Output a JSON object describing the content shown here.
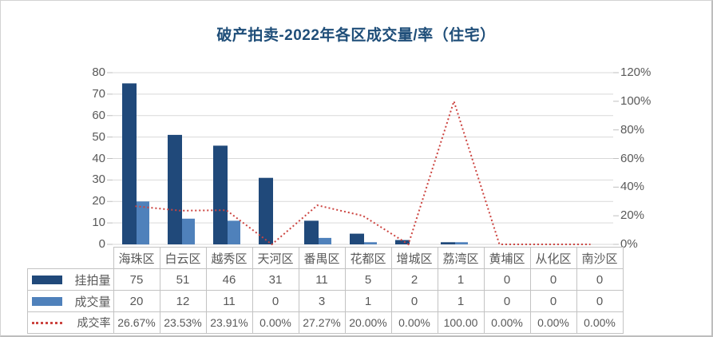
{
  "title": "破产拍卖-2022年各区成交量/率（住宅）",
  "colors": {
    "title": "#1f4e79",
    "bar_listed": "#20497a",
    "bar_sold": "#4f81bb",
    "rate_line": "#cc4440",
    "gridline": "#d9d9d9",
    "tick": "#bfbfbf",
    "axis_text": "#595959",
    "table_border": "#c3c3c3"
  },
  "chart_data": {
    "type": "bar",
    "subtype": "bar-line-combo",
    "title": "破产拍卖-2022年各区成交量/率（住宅）",
    "categories": [
      "海珠区",
      "白云区",
      "越秀区",
      "天河区",
      "番禺区",
      "花都区",
      "增城区",
      "荔湾区",
      "黄埔区",
      "从化区",
      "南沙区"
    ],
    "series": [
      {
        "name": "挂拍量",
        "type": "bar",
        "axis": "left",
        "color": "#20497a",
        "values": [
          75,
          51,
          46,
          31,
          11,
          5,
          2,
          1,
          0,
          0,
          0
        ],
        "display": [
          "75",
          "51",
          "46",
          "31",
          "11",
          "5",
          "2",
          "1",
          "0",
          "0",
          "0"
        ]
      },
      {
        "name": "成交量",
        "type": "bar",
        "axis": "left",
        "color": "#4f81bb",
        "values": [
          20,
          12,
          11,
          0,
          3,
          1,
          0,
          1,
          0,
          0,
          0
        ],
        "display": [
          "20",
          "12",
          "11",
          "0",
          "3",
          "1",
          "0",
          "1",
          "0",
          "0",
          "0"
        ]
      },
      {
        "name": "成交率",
        "type": "line",
        "line_style": "dotted",
        "axis": "right",
        "color": "#cc4440",
        "values_pct": [
          26.67,
          23.53,
          23.91,
          0.0,
          27.27,
          20.0,
          0.0,
          100.0,
          0.0,
          0.0,
          0.0
        ],
        "display": [
          "26.67%",
          "23.53%",
          "23.91%",
          "0.00%",
          "27.27%",
          "20.00%",
          "0.00%",
          "100.00",
          "0.00%",
          "0.00%",
          "0.00%"
        ]
      }
    ],
    "left_axis": {
      "min": 0,
      "max": 80,
      "step": 10,
      "tick_labels_top_to_bottom": [
        "80",
        "70",
        "60",
        "50",
        "40",
        "30",
        "20",
        "10",
        "0"
      ]
    },
    "right_axis": {
      "min_pct": 0,
      "max_pct": 120,
      "step_pct": 20,
      "tick_labels_top_to_bottom": [
        "120%",
        "100%",
        "80%",
        "60%",
        "40%",
        "20%",
        "0%"
      ]
    },
    "grid": true,
    "legend_position": "table-left"
  }
}
